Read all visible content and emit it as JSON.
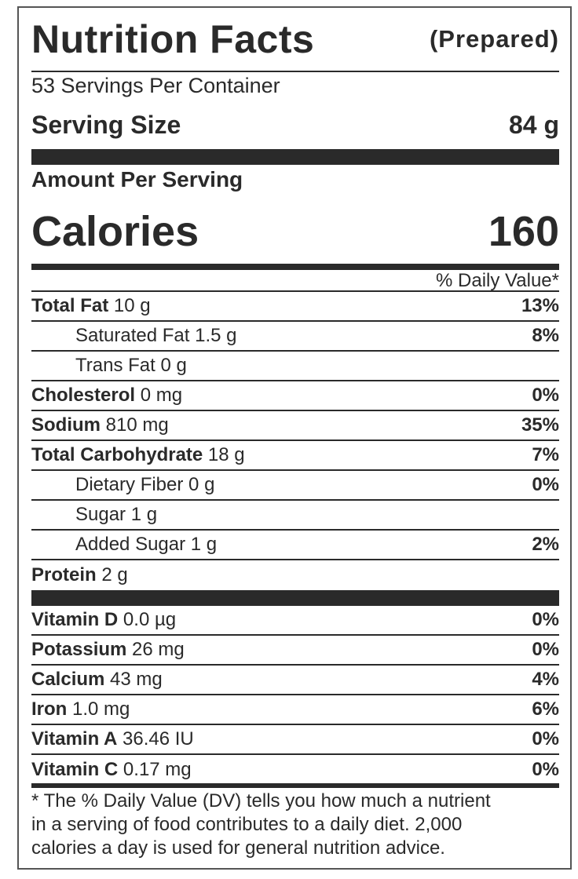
{
  "header": {
    "title": "Nutrition Facts",
    "qualifier": "(Prepared)"
  },
  "servings": "53 Servings Per Container",
  "serving_size": {
    "label": "Serving Size",
    "value": "84 g"
  },
  "amount_per_serving": "Amount Per Serving",
  "calories": {
    "label": "Calories",
    "value": "160"
  },
  "daily_value_header": "% Daily Value*",
  "nutrients": [
    {
      "name": "Total Fat",
      "amount": "10 g",
      "dv": "13%",
      "sub": [
        {
          "name": "Saturated Fat",
          "amount": "1.5 g",
          "dv": "8%"
        },
        {
          "name": "Trans Fat",
          "amount": "0 g"
        }
      ]
    },
    {
      "name": "Cholesterol",
      "amount": "0 mg",
      "dv": "0%"
    },
    {
      "name": "Sodium",
      "amount": "810 mg",
      "dv": "35%"
    },
    {
      "name": "Total Carbohydrate",
      "amount": "18 g",
      "dv": "7%",
      "sub": [
        {
          "name": "Dietary Fiber",
          "amount": "0 g",
          "dv": "0%"
        },
        {
          "name": "Sugar",
          "amount": "1 g"
        },
        {
          "name": "Added Sugar",
          "amount": "1 g",
          "dv": "2%"
        }
      ]
    },
    {
      "name": "Protein",
      "amount": "2 g"
    }
  ],
  "vitamins": [
    {
      "name": "Vitamin D",
      "amount": "0.0 µg",
      "dv": "0%"
    },
    {
      "name": "Potassium",
      "amount": "26 mg",
      "dv": "0%"
    },
    {
      "name": "Calcium",
      "amount": "43 mg",
      "dv": "4%"
    },
    {
      "name": "Iron",
      "amount": "1.0 mg",
      "dv": "6%"
    },
    {
      "name": "Vitamin A",
      "amount": "36.46 IU",
      "dv": "0%"
    },
    {
      "name": "Vitamin C",
      "amount": "0.17 mg",
      "dv": "0%"
    }
  ],
  "footnote": [
    "* The % Daily Value (DV) tells you how much a nutrient",
    "in a serving of food contributes to a daily diet. 2,000",
    "calories a day is used for general nutrition advice."
  ]
}
